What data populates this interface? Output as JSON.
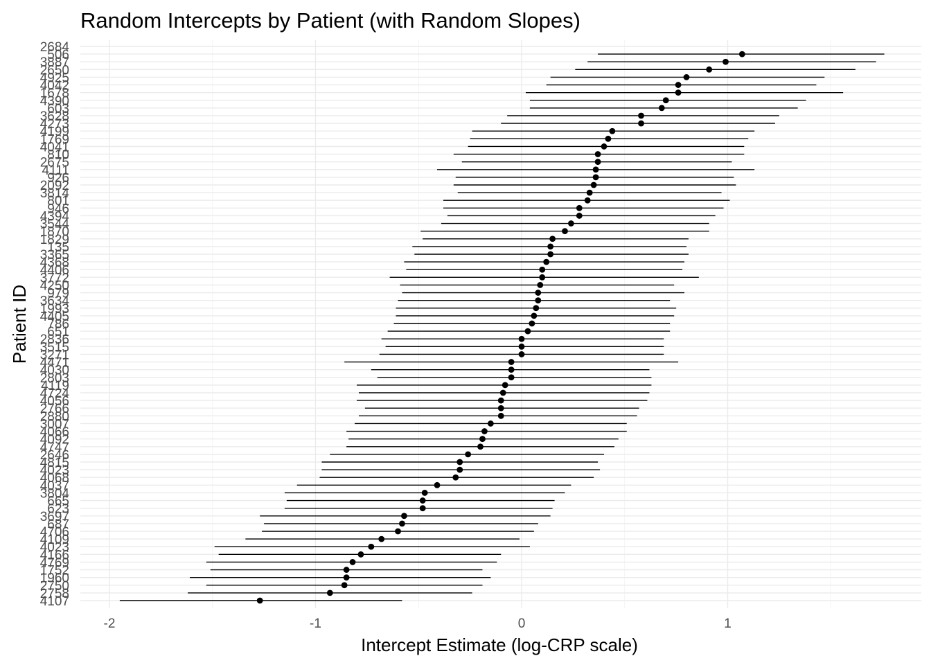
{
  "chart_data": {
    "type": "scatter",
    "title": "Random Intercepts by Patient (with Random Slopes)",
    "xlabel": "Intercept Estimate (log-CRP scale)",
    "ylabel": "Patient ID",
    "xlim": [
      -2.1,
      1.95
    ],
    "x_ticks": [
      -2,
      -1,
      0,
      1
    ],
    "x_tick_labels": [
      "-2",
      "-1",
      "0",
      "1"
    ],
    "grid": true,
    "points": [
      {
        "id": "2684",
        "est": 1.07,
        "lo": 0.37,
        "hi": 1.76
      },
      {
        "id": "506",
        "est": 0.99,
        "lo": 0.32,
        "hi": 1.72
      },
      {
        "id": "3887",
        "est": 0.91,
        "lo": 0.26,
        "hi": 1.62
      },
      {
        "id": "2650",
        "est": 0.8,
        "lo": 0.14,
        "hi": 1.47
      },
      {
        "id": "4925",
        "est": 0.76,
        "lo": 0.12,
        "hi": 1.43
      },
      {
        "id": "4042",
        "est": 0.76,
        "lo": 0.02,
        "hi": 1.56
      },
      {
        "id": "1678",
        "est": 0.7,
        "lo": 0.04,
        "hi": 1.38
      },
      {
        "id": "4390",
        "est": 0.68,
        "lo": 0.04,
        "hi": 1.34
      },
      {
        "id": "603",
        "est": 0.58,
        "lo": -0.07,
        "hi": 1.25
      },
      {
        "id": "3628",
        "est": 0.58,
        "lo": -0.1,
        "hi": 1.23
      },
      {
        "id": "4273",
        "est": 0.44,
        "lo": -0.24,
        "hi": 1.13
      },
      {
        "id": "4199",
        "est": 0.42,
        "lo": -0.25,
        "hi": 1.1
      },
      {
        "id": "1769",
        "est": 0.4,
        "lo": -0.26,
        "hi": 1.08
      },
      {
        "id": "4041",
        "est": 0.37,
        "lo": -0.33,
        "hi": 1.08
      },
      {
        "id": "810",
        "est": 0.37,
        "lo": -0.29,
        "hi": 1.02
      },
      {
        "id": "2675",
        "est": 0.36,
        "lo": -0.41,
        "hi": 1.13
      },
      {
        "id": "4111",
        "est": 0.36,
        "lo": -0.32,
        "hi": 1.03
      },
      {
        "id": "926",
        "est": 0.35,
        "lo": -0.33,
        "hi": 1.04
      },
      {
        "id": "2092",
        "est": 0.33,
        "lo": -0.31,
        "hi": 0.97
      },
      {
        "id": "3814",
        "est": 0.32,
        "lo": -0.38,
        "hi": 1.01
      },
      {
        "id": "801",
        "est": 0.28,
        "lo": -0.38,
        "hi": 0.98
      },
      {
        "id": "946",
        "est": 0.28,
        "lo": -0.36,
        "hi": 0.94
      },
      {
        "id": "4394",
        "est": 0.24,
        "lo": -0.39,
        "hi": 0.91
      },
      {
        "id": "3544",
        "est": 0.21,
        "lo": -0.49,
        "hi": 0.91
      },
      {
        "id": "1870",
        "est": 0.15,
        "lo": -0.48,
        "hi": 0.81
      },
      {
        "id": "1829",
        "est": 0.14,
        "lo": -0.53,
        "hi": 0.8
      },
      {
        "id": "135",
        "est": 0.14,
        "lo": -0.52,
        "hi": 0.81
      },
      {
        "id": "3365",
        "est": 0.12,
        "lo": -0.57,
        "hi": 0.79
      },
      {
        "id": "4368",
        "est": 0.1,
        "lo": -0.56,
        "hi": 0.78
      },
      {
        "id": "4406",
        "est": 0.1,
        "lo": -0.64,
        "hi": 0.86
      },
      {
        "id": "3772",
        "est": 0.09,
        "lo": -0.59,
        "hi": 0.74
      },
      {
        "id": "4250",
        "est": 0.08,
        "lo": -0.58,
        "hi": 0.79
      },
      {
        "id": "979",
        "est": 0.08,
        "lo": -0.6,
        "hi": 0.72
      },
      {
        "id": "3634",
        "est": 0.07,
        "lo": -0.61,
        "hi": 0.75
      },
      {
        "id": "1993",
        "est": 0.06,
        "lo": -0.61,
        "hi": 0.74
      },
      {
        "id": "4405",
        "est": 0.05,
        "lo": -0.62,
        "hi": 0.72
      },
      {
        "id": "786",
        "est": 0.03,
        "lo": -0.65,
        "hi": 0.72
      },
      {
        "id": "651",
        "est": 0.0,
        "lo": -0.68,
        "hi": 0.69
      },
      {
        "id": "2836",
        "est": 0.0,
        "lo": -0.66,
        "hi": 0.69
      },
      {
        "id": "3515",
        "est": 0.0,
        "lo": -0.69,
        "hi": 0.69
      },
      {
        "id": "3271",
        "est": -0.05,
        "lo": -0.86,
        "hi": 0.76
      },
      {
        "id": "4471",
        "est": -0.05,
        "lo": -0.73,
        "hi": 0.62
      },
      {
        "id": "4030",
        "est": -0.05,
        "lo": -0.7,
        "hi": 0.63
      },
      {
        "id": "2803",
        "est": -0.08,
        "lo": -0.8,
        "hi": 0.63
      },
      {
        "id": "4119",
        "est": -0.09,
        "lo": -0.79,
        "hi": 0.62
      },
      {
        "id": "4724",
        "est": -0.1,
        "lo": -0.8,
        "hi": 0.61
      },
      {
        "id": "4056",
        "est": -0.1,
        "lo": -0.76,
        "hi": 0.57
      },
      {
        "id": "2766",
        "est": -0.1,
        "lo": -0.79,
        "hi": 0.56
      },
      {
        "id": "2880",
        "est": -0.15,
        "lo": -0.81,
        "hi": 0.51
      },
      {
        "id": "3007",
        "est": -0.18,
        "lo": -0.85,
        "hi": 0.51
      },
      {
        "id": "4066",
        "est": -0.19,
        "lo": -0.84,
        "hi": 0.47
      },
      {
        "id": "4092",
        "est": -0.2,
        "lo": -0.85,
        "hi": 0.45
      },
      {
        "id": "4747",
        "est": -0.26,
        "lo": -0.93,
        "hi": 0.4
      },
      {
        "id": "2646",
        "est": -0.3,
        "lo": -0.97,
        "hi": 0.37
      },
      {
        "id": "4815",
        "est": -0.3,
        "lo": -0.97,
        "hi": 0.38
      },
      {
        "id": "4023",
        "est": -0.32,
        "lo": -0.98,
        "hi": 0.35
      },
      {
        "id": "4068",
        "est": -0.41,
        "lo": -1.09,
        "hi": 0.24
      },
      {
        "id": "4037",
        "est": -0.47,
        "lo": -1.15,
        "hi": 0.21
      },
      {
        "id": "3804",
        "est": -0.48,
        "lo": -1.14,
        "hi": 0.16
      },
      {
        "id": "665",
        "est": -0.48,
        "lo": -1.15,
        "hi": 0.15
      },
      {
        "id": "623",
        "est": -0.57,
        "lo": -1.27,
        "hi": 0.14
      },
      {
        "id": "3697",
        "est": -0.58,
        "lo": -1.25,
        "hi": 0.08
      },
      {
        "id": "687",
        "est": -0.6,
        "lo": -1.26,
        "hi": 0.06
      },
      {
        "id": "4706",
        "est": -0.68,
        "lo": -1.34,
        "hi": -0.01
      },
      {
        "id": "4109",
        "est": -0.73,
        "lo": -1.49,
        "hi": 0.04
      },
      {
        "id": "4023",
        "est": -0.78,
        "lo": -1.47,
        "hi": -0.1
      },
      {
        "id": "4166",
        "est": -0.82,
        "lo": -1.53,
        "hi": -0.12
      },
      {
        "id": "4769",
        "est": -0.85,
        "lo": -1.51,
        "hi": -0.19
      },
      {
        "id": "1752",
        "est": -0.85,
        "lo": -1.61,
        "hi": -0.15
      },
      {
        "id": "1960",
        "est": -0.86,
        "lo": -1.53,
        "hi": -0.19
      },
      {
        "id": "2750",
        "est": -0.93,
        "lo": -1.62,
        "hi": -0.24
      },
      {
        "id": "2758",
        "est": -1.27,
        "lo": -1.95,
        "hi": -0.58
      },
      {
        "id": "4107",
        "est": null,
        "lo": null,
        "hi": null
      }
    ]
  }
}
